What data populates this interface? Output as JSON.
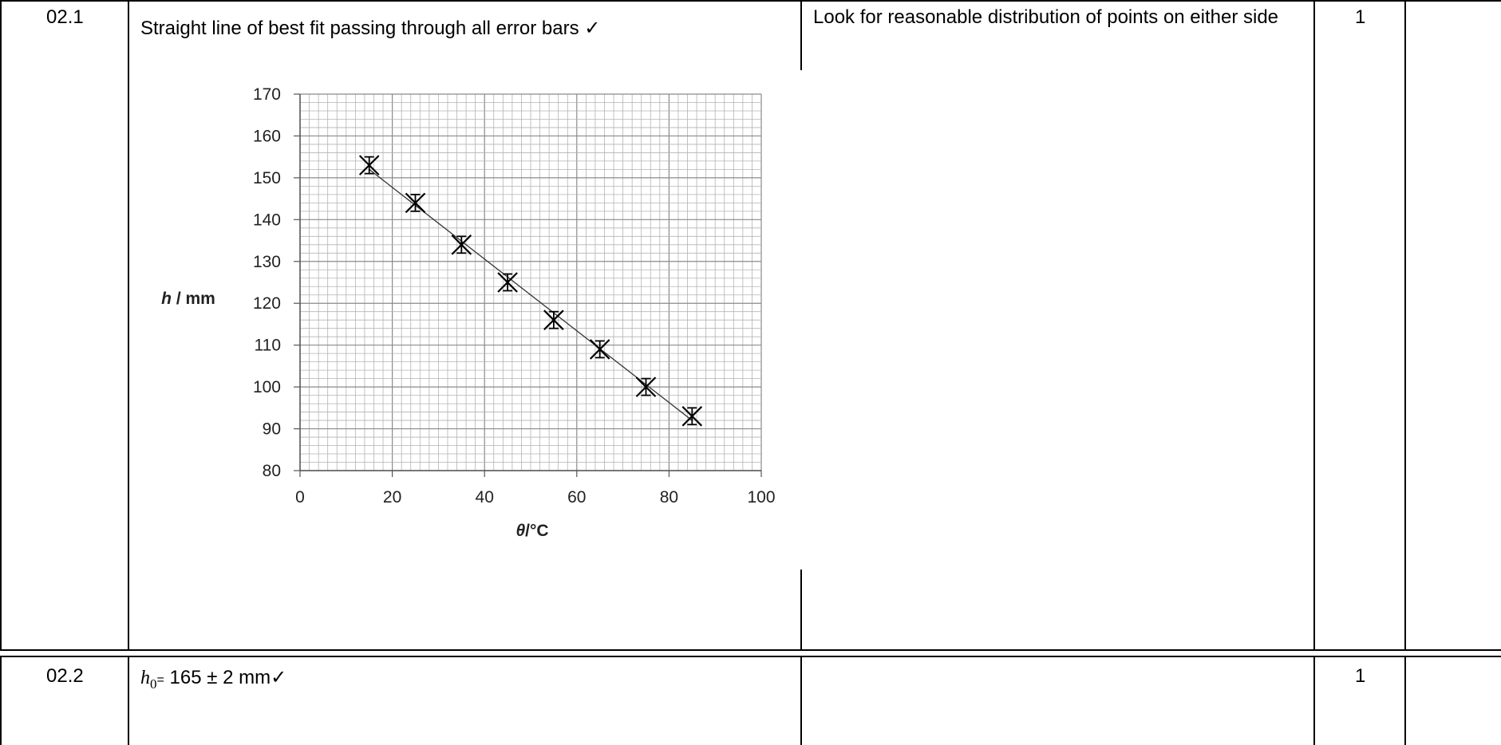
{
  "rows": [
    {
      "question": "02.1",
      "answer": "Straight line of best fit passing through all error bars ✓",
      "guidance": "Look for reasonable distribution of points on either side",
      "marks": "1",
      "ao": ""
    },
    {
      "question": "02.2",
      "answer_symbol": "h",
      "answer_subscript": "0",
      "answer_equals": "=",
      "answer_value": " 165 ± 2 mm✓",
      "guidance": "",
      "marks": "1",
      "ao": ""
    }
  ],
  "chart_data": {
    "type": "scatter",
    "xlabel_symbol": "θ",
    "xlabel_unit": "/°C",
    "ylabel_symbol": "h",
    "ylabel_unit": " / mm",
    "xlim": [
      0,
      100
    ],
    "ylim": [
      80,
      170
    ],
    "x_ticks": [
      0,
      20,
      40,
      60,
      80,
      100
    ],
    "y_ticks": [
      80,
      90,
      100,
      110,
      120,
      130,
      140,
      150,
      160,
      170
    ],
    "grid": true,
    "x": [
      15,
      25,
      35,
      45,
      55,
      65,
      75,
      85
    ],
    "y": [
      153,
      144,
      134,
      125,
      116,
      109,
      100,
      93
    ],
    "y_error": 2,
    "best_fit": {
      "x": [
        15,
        85
      ],
      "y": [
        152,
        92
      ]
    }
  }
}
